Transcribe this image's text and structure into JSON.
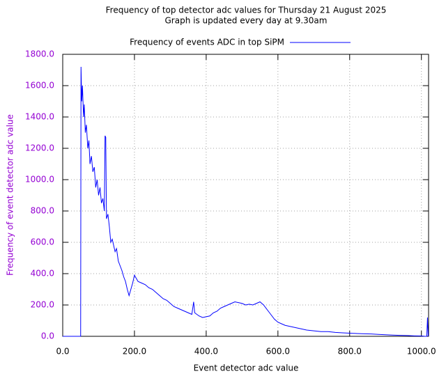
{
  "chart_data": {
    "type": "line",
    "title": "Frequency of top detector adc values for Thursday 21 August 2025",
    "subtitle": "Graph is updated every day at 9.30am",
    "x_label": "Event detector adc value",
    "y_label": "Frequency of event detector adc value",
    "x": [
      0,
      48,
      50,
      51,
      53,
      55,
      58,
      60,
      63,
      66,
      70,
      73,
      76,
      80,
      84,
      88,
      92,
      96,
      100,
      104,
      108,
      112,
      116,
      118,
      120,
      122,
      126,
      130,
      134,
      138,
      142,
      146,
      150,
      155,
      160,
      165,
      170,
      175,
      180,
      185,
      190,
      195,
      200,
      205,
      210,
      220,
      230,
      240,
      250,
      260,
      270,
      280,
      290,
      300,
      310,
      320,
      330,
      340,
      350,
      360,
      365,
      368,
      380,
      390,
      400,
      410,
      420,
      430,
      440,
      450,
      460,
      470,
      480,
      490,
      500,
      510,
      520,
      530,
      540,
      550,
      560,
      570,
      580,
      590,
      600,
      610,
      620,
      640,
      660,
      680,
      700,
      720,
      740,
      760,
      780,
      800,
      820,
      840,
      860,
      880,
      900,
      920,
      940,
      960,
      980,
      1000,
      1010,
      1015,
      1017,
      1019
    ],
    "series": [
      {
        "name": "Frequency of events ADC in top SiPM",
        "color": "#0000ff",
        "values": [
          0,
          0,
          0,
          1720,
          1500,
          1600,
          1400,
          1480,
          1300,
          1350,
          1200,
          1250,
          1100,
          1150,
          1050,
          1080,
          950,
          1000,
          900,
          950,
          850,
          880,
          800,
          1280,
          1270,
          750,
          780,
          700,
          600,
          620,
          580,
          540,
          560,
          480,
          450,
          420,
          380,
          350,
          300,
          260,
          300,
          340,
          390,
          370,
          350,
          340,
          330,
          310,
          300,
          280,
          260,
          240,
          230,
          210,
          190,
          180,
          170,
          160,
          150,
          140,
          220,
          150,
          130,
          120,
          125,
          130,
          150,
          160,
          180,
          190,
          200,
          210,
          220,
          215,
          210,
          200,
          205,
          200,
          210,
          220,
          200,
          170,
          140,
          110,
          90,
          80,
          70,
          60,
          50,
          40,
          35,
          30,
          30,
          25,
          22,
          20,
          18,
          16,
          15,
          12,
          10,
          8,
          6,
          5,
          3,
          2,
          0,
          0,
          120,
          0
        ]
      }
    ],
    "xlim": [
      0,
      1020
    ],
    "ylim": [
      0,
      1800
    ],
    "xticks": [
      {
        "value": 0,
        "label": "0.0"
      },
      {
        "value": 200,
        "label": "200.0"
      },
      {
        "value": 400,
        "label": "400.0"
      },
      {
        "value": 600,
        "label": "600.0"
      },
      {
        "value": 800,
        "label": "800.0"
      },
      {
        "value": 1000,
        "label": "1000.0"
      }
    ],
    "yticks": [
      {
        "value": 0,
        "label": "0.0"
      },
      {
        "value": 200,
        "label": "200.0"
      },
      {
        "value": 400,
        "label": "400.0"
      },
      {
        "value": 600,
        "label": "600.0"
      },
      {
        "value": 800,
        "label": "800.0"
      },
      {
        "value": 1000,
        "label": "1000.0"
      },
      {
        "value": 1200,
        "label": "1200.0"
      },
      {
        "value": 1400,
        "label": "1400.0"
      },
      {
        "value": 1600,
        "label": "1600.0"
      },
      {
        "value": 1800,
        "label": "1800.0"
      }
    ],
    "grid": true,
    "y_axis_color": "#9400d3"
  }
}
